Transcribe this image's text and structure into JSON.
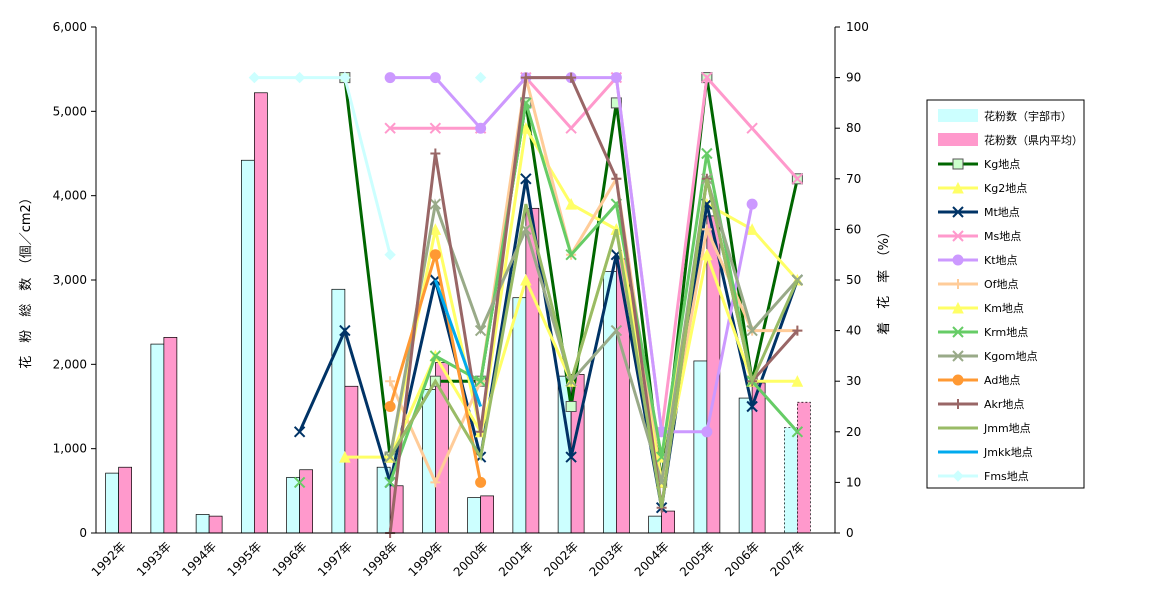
{
  "chart_data": {
    "type": "bar",
    "title": "",
    "categories": [
      "1992年",
      "1993年",
      "1994年",
      "1995年",
      "1996年",
      "1997年",
      "1998年",
      "1999年",
      "2000年",
      "2001年",
      "2002年",
      "2003年",
      "2004年",
      "2005年",
      "2006年",
      "2007年"
    ],
    "y_left": {
      "label": "花　粉　総　数　（個／cm2）",
      "range": [
        0,
        6000
      ],
      "ticks": [
        "0",
        "1,000",
        "2,000",
        "3,000",
        "4,000",
        "5,000",
        "6,000"
      ],
      "tick_values": [
        0,
        1000,
        2000,
        3000,
        4000,
        5000,
        6000
      ]
    },
    "y_right": {
      "label": "着　花　率　（%）",
      "range": [
        0,
        100
      ],
      "ticks": [
        "0",
        "10",
        "20",
        "30",
        "40",
        "50",
        "60",
        "70",
        "80",
        "90",
        "100"
      ],
      "tick_values": [
        0,
        10,
        20,
        30,
        40,
        50,
        60,
        70,
        80,
        90,
        100
      ]
    },
    "bar_series": [
      {
        "name": "花粉数（宇部市）",
        "color": "#ccffff",
        "stroke": "#000000",
        "values": [
          710,
          2240,
          220,
          4420,
          660,
          2890,
          780,
          1700,
          420,
          2790,
          1860,
          3100,
          200,
          2040,
          1600,
          1250
        ],
        "dashed_last": true
      },
      {
        "name": "花粉数（県内平均）",
        "color": "#ff99cc",
        "stroke": "#000000",
        "values": [
          780,
          2320,
          200,
          5220,
          750,
          1740,
          560,
          2020,
          440,
          3850,
          1880,
          3250,
          260,
          3760,
          1780,
          1550
        ],
        "dashed_last": true
      }
    ],
    "line_series": [
      {
        "name": "Kg地点",
        "color": "#006600",
        "marker": "square",
        "values": [
          null,
          null,
          null,
          null,
          null,
          90,
          15,
          30,
          30,
          85,
          25,
          85,
          10,
          90,
          30,
          70
        ]
      },
      {
        "name": "Kg2地点",
        "color": "#ffff66",
        "marker": "triangle",
        "values": [
          null,
          null,
          null,
          null,
          null,
          15,
          15,
          60,
          20,
          80,
          65,
          60,
          15,
          65,
          60,
          50
        ]
      },
      {
        "name": "Mt地点",
        "color": "#003366",
        "marker": "x",
        "values": [
          null,
          null,
          null,
          null,
          20,
          40,
          10,
          50,
          15,
          70,
          15,
          55,
          5,
          65,
          25,
          50
        ]
      },
      {
        "name": "Ms地点",
        "color": "#ff99cc",
        "marker": "x",
        "values": [
          null,
          null,
          null,
          null,
          null,
          null,
          80,
          80,
          80,
          90,
          80,
          90,
          20,
          90,
          80,
          70
        ]
      },
      {
        "name": "Kt地点",
        "color": "#cc99ff",
        "marker": "circle",
        "values": [
          null,
          null,
          null,
          null,
          null,
          null,
          90,
          90,
          80,
          90,
          90,
          90,
          20,
          20,
          65,
          null
        ]
      },
      {
        "name": "Of地点",
        "color": "#ffcc99",
        "marker": "plus",
        "values": [
          null,
          null,
          null,
          null,
          null,
          null,
          30,
          10,
          30,
          90,
          55,
          70,
          10,
          60,
          40,
          40
        ]
      },
      {
        "name": "Km地点",
        "color": "#ffff66",
        "marker": "triangle",
        "values": [
          null,
          null,
          null,
          null,
          null,
          null,
          15,
          35,
          20,
          50,
          30,
          60,
          10,
          55,
          30,
          30
        ]
      },
      {
        "name": "Krm地点",
        "color": "#66cc66",
        "marker": "x",
        "values": [
          null,
          null,
          null,
          null,
          10,
          null,
          10,
          35,
          30,
          85,
          55,
          65,
          15,
          75,
          30,
          20
        ]
      },
      {
        "name": "Kgom地点",
        "color": "#99aa88",
        "marker": "x",
        "values": [
          null,
          null,
          null,
          null,
          null,
          null,
          15,
          65,
          40,
          60,
          30,
          40,
          10,
          70,
          40,
          50
        ]
      },
      {
        "name": "Ad地点",
        "color": "#ff9933",
        "marker": "circle",
        "values": [
          null,
          null,
          null,
          null,
          null,
          null,
          25,
          55,
          10,
          null,
          null,
          null,
          null,
          null,
          null,
          null
        ]
      },
      {
        "name": "Akr地点",
        "color": "#996666",
        "marker": "plus",
        "values": [
          null,
          null,
          null,
          null,
          null,
          null,
          0,
          75,
          20,
          90,
          90,
          70,
          5,
          70,
          30,
          40
        ]
      },
      {
        "name": "Jmm地点",
        "color": "#99bb66",
        "marker": "none",
        "values": [
          null,
          null,
          null,
          null,
          null,
          null,
          15,
          30,
          15,
          65,
          30,
          60,
          5,
          70,
          30,
          50
        ]
      },
      {
        "name": "Jmkk地点",
        "color": "#00aaee",
        "marker": "none",
        "values": [
          null,
          null,
          null,
          null,
          null,
          null,
          null,
          50,
          25,
          null,
          null,
          null,
          null,
          null,
          null,
          null
        ]
      },
      {
        "name": "Fms地点",
        "color": "#ccffff",
        "marker": "diamond",
        "values": [
          null,
          null,
          null,
          90,
          90,
          90,
          55,
          null,
          90,
          null,
          null,
          null,
          null,
          null,
          null,
          null
        ]
      }
    ],
    "grid": false,
    "legend_position": "right"
  }
}
